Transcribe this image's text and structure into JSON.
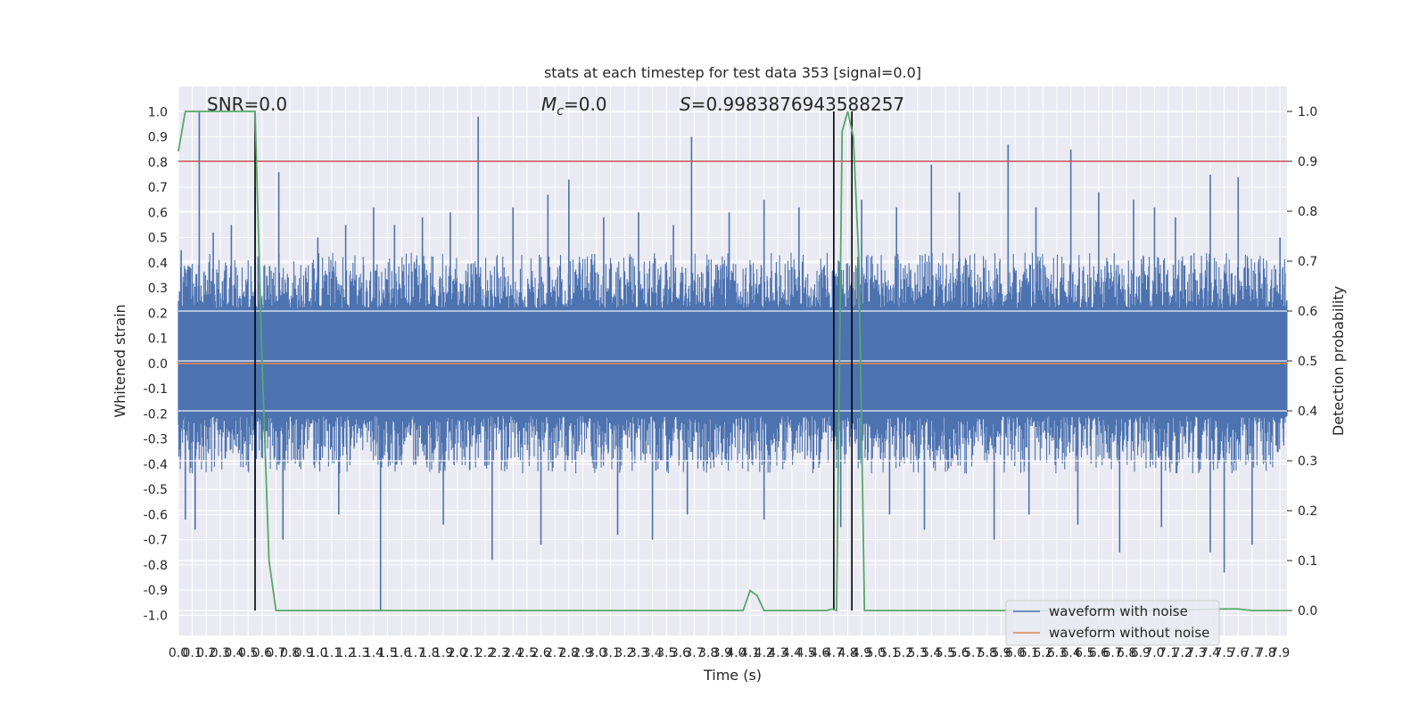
{
  "chart_data": {
    "type": "line",
    "title": "stats at each timestep for test data 353 [signal=0.0]",
    "xlabel": "Time (s)",
    "ylabel": "Whitened strain",
    "ylabel_right": "Detection probability",
    "xlim": [
      0.0,
      7.95
    ],
    "ylim": [
      -1.08,
      1.1
    ],
    "ylim_right": [
      -0.05,
      1.05
    ],
    "x_ticks": [
      0.0,
      0.1,
      0.2,
      0.3,
      0.4,
      0.5,
      0.6,
      0.7,
      0.8,
      0.9,
      1.0,
      1.1,
      1.2,
      1.3,
      1.4,
      1.5,
      1.6,
      1.7,
      1.8,
      1.9,
      2.0,
      2.1,
      2.2,
      2.3,
      2.4,
      2.5,
      2.6,
      2.7,
      2.8,
      2.9,
      3.0,
      3.1,
      3.2,
      3.3,
      3.4,
      3.5,
      3.6,
      3.7,
      3.8,
      3.9,
      4.0,
      4.1,
      4.2,
      4.3,
      4.4,
      4.5,
      4.6,
      4.7,
      4.8,
      4.9,
      5.0,
      5.1,
      5.2,
      5.3,
      5.4,
      5.5,
      5.6,
      5.7,
      5.8,
      5.9,
      6.0,
      6.1,
      6.2,
      6.3,
      6.4,
      6.5,
      6.6,
      6.7,
      6.8,
      6.9,
      7.0,
      7.1,
      7.2,
      7.3,
      7.4,
      7.5,
      7.6,
      7.7,
      7.8,
      7.9
    ],
    "x_tick_labels": [
      "0.0",
      "0.1",
      "0.2",
      "0.3",
      "0.4",
      "0.5",
      "0.6",
      "0.7",
      "0.8",
      "0.9",
      "1.0",
      "1.1",
      "1.2",
      "1.3",
      "1.4",
      "1.5",
      "1.6",
      "1.7",
      "1.8",
      "1.9",
      "2.0",
      "2.1",
      "2.2",
      "2.3",
      "2.4",
      "2.5",
      "2.6",
      "2.7",
      "2.8",
      "2.9",
      "3.0",
      "3.1",
      "3.2",
      "3.3",
      "3.4",
      "3.5",
      "3.6",
      "3.7",
      "3.8",
      "3.9",
      "4.0",
      "4.1",
      "4.2",
      "4.3",
      "4.4",
      "4.5",
      "4.6",
      "4.7",
      "4.8",
      "4.9",
      "5.0",
      "5.1",
      "5.2",
      "5.3",
      "5.4",
      "5.5",
      "5.6",
      "5.7",
      "5.8",
      "5.9",
      "6.0",
      "6.1",
      "6.2",
      "6.3",
      "6.4",
      "6.5",
      "6.6",
      "6.7",
      "6.8",
      "6.9",
      "7.0",
      "7.1",
      "7.2",
      "7.3",
      "7.4",
      "7.5",
      "7.6",
      "7.7",
      "7.8",
      "7.9"
    ],
    "y_ticks": [
      1.0,
      0.9,
      0.8,
      0.7,
      0.6,
      0.5,
      0.4,
      0.3,
      0.2,
      0.1,
      0.0,
      -0.1,
      -0.2,
      -0.3,
      -0.4,
      -0.5,
      -0.6,
      -0.7,
      -0.8,
      -0.9,
      -1.0
    ],
    "y_tick_labels": [
      "1.0",
      "0.9",
      "0.8",
      "0.7",
      "0.6",
      "0.5",
      "0.4",
      "0.3",
      "0.2",
      "0.1",
      "0.0",
      "-0.1",
      "-0.2",
      "-0.3",
      "-0.4",
      "-0.5",
      "-0.6",
      "-0.7",
      "-0.8",
      "-0.9",
      "-1.0"
    ],
    "y_right_ticks": [
      1.0,
      0.9,
      0.8,
      0.7,
      0.6,
      0.5,
      0.4,
      0.3,
      0.2,
      0.1,
      0.0
    ],
    "y_right_tick_labels": [
      "1.0",
      "0.9",
      "0.8",
      "0.7",
      "0.6",
      "0.5",
      "0.4",
      "0.3",
      "0.2",
      "0.1",
      "0.0"
    ],
    "grid": true,
    "legend_position": "lower-right",
    "annotations": {
      "snr": "SNR=0.0",
      "mc_symbol": "M",
      "mc_sub": "c",
      "mc_value": "=0.0",
      "s_symbol": "S",
      "s_value": "=0.9983876943588257"
    },
    "threshold": {
      "value": 0.9,
      "axis": "right",
      "color": "#c44e52"
    },
    "vertical_markers": [
      0.55,
      4.7,
      4.83
    ],
    "series": [
      {
        "name": "waveform with noise",
        "axis": "left",
        "color": "#4c72b0",
        "kind": "dense_noise",
        "band_upper": 0.4,
        "band_lower": -0.38,
        "peaks": [
          [
            0.02,
            0.45
          ],
          [
            0.15,
            1.0
          ],
          [
            0.25,
            0.52
          ],
          [
            0.38,
            0.55
          ],
          [
            0.55,
            0.7
          ],
          [
            0.72,
            0.76
          ],
          [
            1.0,
            0.5
          ],
          [
            1.2,
            0.55
          ],
          [
            1.4,
            0.62
          ],
          [
            1.55,
            0.55
          ],
          [
            1.75,
            0.58
          ],
          [
            1.95,
            0.6
          ],
          [
            2.15,
            0.98
          ],
          [
            2.4,
            0.62
          ],
          [
            2.65,
            0.67
          ],
          [
            2.8,
            0.73
          ],
          [
            3.05,
            0.58
          ],
          [
            3.3,
            0.6
          ],
          [
            3.55,
            0.55
          ],
          [
            3.68,
            0.9
          ],
          [
            3.95,
            0.6
          ],
          [
            4.2,
            0.65
          ],
          [
            4.45,
            0.62
          ],
          [
            4.9,
            0.65
          ],
          [
            5.15,
            0.62
          ],
          [
            5.4,
            0.79
          ],
          [
            5.6,
            0.68
          ],
          [
            5.95,
            0.87
          ],
          [
            6.15,
            0.62
          ],
          [
            6.4,
            0.85
          ],
          [
            6.6,
            0.68
          ],
          [
            6.85,
            0.65
          ],
          [
            7.0,
            0.62
          ],
          [
            7.15,
            0.58
          ],
          [
            7.4,
            0.75
          ],
          [
            7.6,
            0.74
          ],
          [
            7.9,
            0.5
          ]
        ],
        "troughs": [
          [
            0.05,
            -0.62
          ],
          [
            0.12,
            -0.66
          ],
          [
            0.55,
            -0.69
          ],
          [
            0.75,
            -0.7
          ],
          [
            1.15,
            -0.6
          ],
          [
            1.45,
            -0.98
          ],
          [
            1.9,
            -0.64
          ],
          [
            2.25,
            -0.78
          ],
          [
            2.6,
            -0.72
          ],
          [
            3.15,
            -0.68
          ],
          [
            3.4,
            -0.7
          ],
          [
            3.65,
            -0.6
          ],
          [
            4.2,
            -0.62
          ],
          [
            4.75,
            -0.65
          ],
          [
            5.1,
            -0.6
          ],
          [
            5.35,
            -0.66
          ],
          [
            5.85,
            -0.7
          ],
          [
            6.1,
            -0.6
          ],
          [
            6.45,
            -0.64
          ],
          [
            6.75,
            -0.75
          ],
          [
            7.05,
            -0.65
          ],
          [
            7.4,
            -0.75
          ],
          [
            7.5,
            -0.83
          ],
          [
            7.7,
            -0.72
          ]
        ]
      },
      {
        "name": "waveform without noise",
        "axis": "left",
        "color": "#dd8452",
        "x": [
          0.0,
          7.95
        ],
        "y": [
          0.0,
          0.0
        ]
      },
      {
        "name": "Detection probability",
        "axis": "right",
        "color": "#55a868",
        "x": [
          0.0,
          0.05,
          0.1,
          0.15,
          0.2,
          0.25,
          0.3,
          0.35,
          0.4,
          0.45,
          0.5,
          0.55,
          0.6,
          0.65,
          0.7,
          0.8,
          1.0,
          1.5,
          2.0,
          2.5,
          3.0,
          3.5,
          3.9,
          4.0,
          4.05,
          4.1,
          4.15,
          4.2,
          4.3,
          4.5,
          4.65,
          4.69,
          4.72,
          4.76,
          4.8,
          4.84,
          4.88,
          4.92,
          5.0,
          5.5,
          6.0,
          7.0,
          7.5,
          7.6,
          7.7,
          7.95
        ],
        "y": [
          0.92,
          1.0,
          1.0,
          1.0,
          1.0,
          1.0,
          1.0,
          1.0,
          1.0,
          1.0,
          1.0,
          1.0,
          0.5,
          0.1,
          0.0,
          0.0,
          0.0,
          0.0,
          0.0,
          0.0,
          0.0,
          0.0,
          0.0,
          0.0,
          0.0,
          0.04,
          0.03,
          0.0,
          0.0,
          0.0,
          0.0,
          0.003,
          0.0,
          0.96,
          1.0,
          0.95,
          0.7,
          0.0,
          0.0,
          0.0,
          0.0,
          0.0,
          0.003,
          0.003,
          0.0,
          0.0
        ]
      }
    ]
  }
}
